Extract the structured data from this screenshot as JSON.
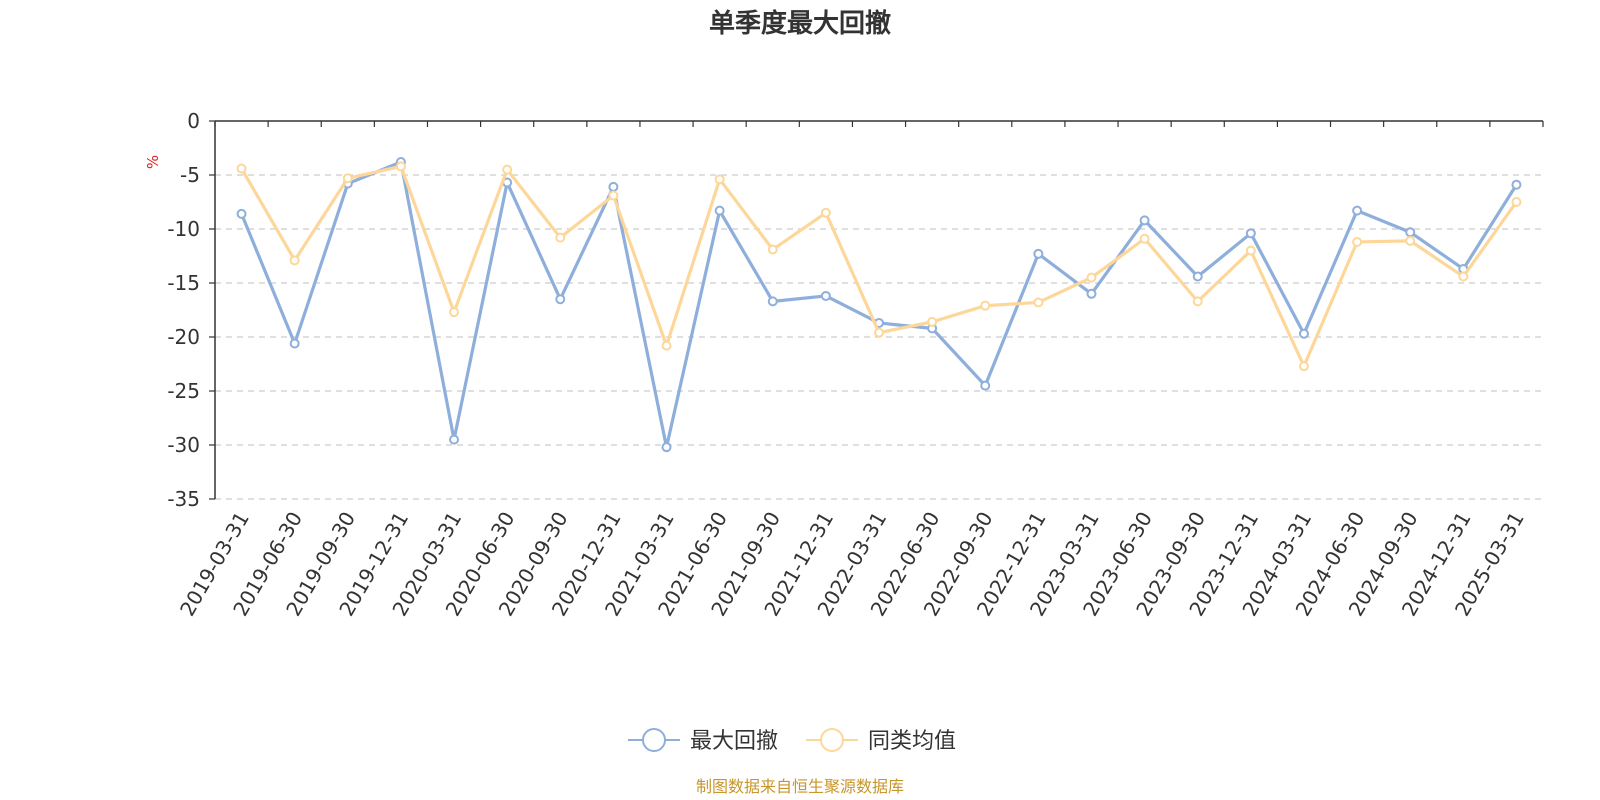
{
  "chart_data": {
    "type": "line",
    "title": "单季度最大回撤",
    "ylabel": "%",
    "xlabel": "",
    "ylim": [
      -35,
      0
    ],
    "yticks": [
      0,
      -5,
      -10,
      -15,
      -20,
      -25,
      -30,
      -35
    ],
    "grid": true,
    "legend_position": "bottom",
    "categories": [
      "2019-03-31",
      "2019-06-30",
      "2019-09-30",
      "2019-12-31",
      "2020-03-31",
      "2020-06-30",
      "2020-09-30",
      "2020-12-31",
      "2021-03-31",
      "2021-06-30",
      "2021-09-30",
      "2021-12-31",
      "2022-03-31",
      "2022-06-30",
      "2022-09-30",
      "2022-12-31",
      "2023-03-31",
      "2023-06-30",
      "2023-09-30",
      "2023-12-31",
      "2024-03-31",
      "2024-06-30",
      "2024-09-30",
      "2024-12-31",
      "2025-03-31"
    ],
    "series": [
      {
        "name": "最大回撤",
        "color": "#8eaedb",
        "values": [
          -8.6,
          -20.6,
          -5.8,
          -3.8,
          -29.5,
          -5.7,
          -16.5,
          -6.1,
          -30.2,
          -8.3,
          -16.7,
          -16.2,
          -18.7,
          -19.2,
          -24.5,
          -12.3,
          -16.0,
          -9.2,
          -14.4,
          -10.4,
          -19.7,
          -8.3,
          -10.3,
          -13.7,
          -5.9
        ]
      },
      {
        "name": "同类均值",
        "color": "#fdd79a",
        "values": [
          -4.4,
          -12.9,
          -5.3,
          -4.2,
          -17.7,
          -4.5,
          -10.8,
          -6.9,
          -20.8,
          -5.4,
          -11.9,
          -8.5,
          -19.6,
          -18.6,
          -17.1,
          -16.8,
          -14.5,
          -10.9,
          -16.7,
          -12.0,
          -22.7,
          -11.2,
          -11.1,
          -14.4,
          -7.5
        ]
      }
    ],
    "source": "制图数据来自恒生聚源数据库"
  }
}
